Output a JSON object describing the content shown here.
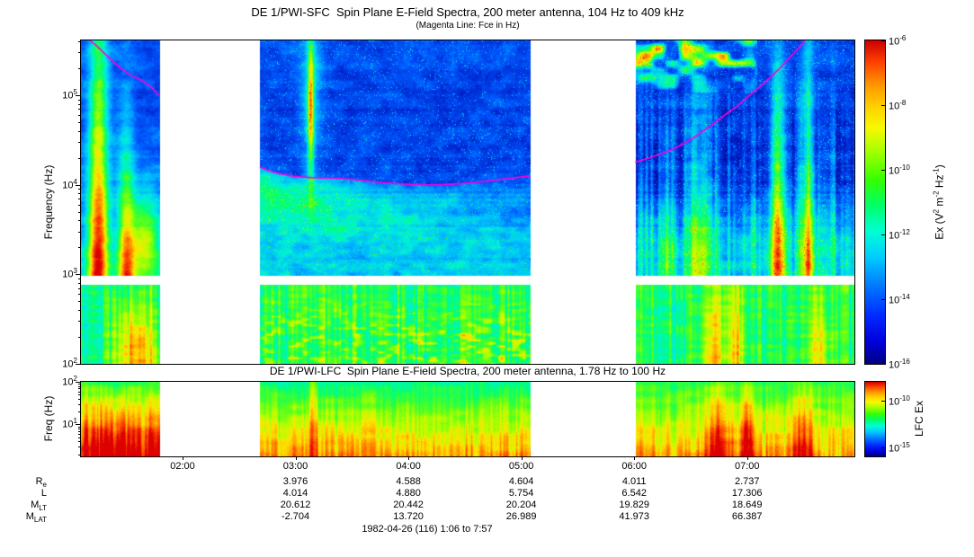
{
  "footer": "1982-04-26 (116) 1:06 to 7:57",
  "time_axis": {
    "start": "1:06",
    "end": "7:57",
    "ticks": [
      "02:00",
      "03:00",
      "04:00",
      "05:00",
      "06:00",
      "07:00"
    ]
  },
  "ephemeris": {
    "col_ticks": [
      "03:00",
      "04:00",
      "05:00",
      "06:00",
      "07:00"
    ],
    "rows": [
      {
        "label": {
          "base": "R",
          "sub": "e"
        },
        "values": [
          "3.976",
          "4.588",
          "4.604",
          "4.011",
          "2.737"
        ]
      },
      {
        "label": {
          "base": "L",
          "sub": ""
        },
        "values": [
          "4.014",
          "4.880",
          "5.754",
          "6.542",
          "17.306"
        ]
      },
      {
        "label": {
          "base": "M",
          "sub": "LT"
        },
        "values": [
          "20.612",
          "20.442",
          "20.204",
          "19.829",
          "18.649"
        ]
      },
      {
        "label": {
          "base": "M",
          "sub": "LAT"
        },
        "values": [
          "-2.704",
          "13.720",
          "26.989",
          "41.973",
          "66.387"
        ]
      }
    ]
  },
  "chart_data": [
    {
      "type": "heatmap",
      "instrument": "DE 1/PWI-SFC",
      "title": "DE 1/PWI-SFC  Spin Plane E-Field Spectra, 200 meter antenna, 104 Hz to 409 kHz",
      "subtitle": "(Magenta Line: Fce in Hz)",
      "ylabel": "Frequency (Hz)",
      "yscale": "log",
      "ylim": [
        100,
        409000
      ],
      "yticks": [
        {
          "value": 100000,
          "base": "10",
          "exp": "5"
        },
        {
          "value": 10000,
          "base": "10",
          "exp": "4"
        },
        {
          "value": 1000,
          "base": "10",
          "exp": "3"
        },
        {
          "value": 100,
          "base": "10",
          "exp": "2"
        }
      ],
      "xticks": [
        "02:00",
        "03:00",
        "04:00",
        "05:00",
        "06:00",
        "07:00"
      ],
      "colorbar": {
        "range": [
          1e-16,
          1e-06
        ],
        "ticks": [
          {
            "base": "10",
            "exp": "-6"
          },
          {
            "base": "10",
            "exp": "-8"
          },
          {
            "base": "10",
            "exp": "-10"
          },
          {
            "base": "10",
            "exp": "-12"
          },
          {
            "base": "10",
            "exp": "-14"
          },
          {
            "base": "10",
            "exp": "-16"
          }
        ],
        "tick_exponents": [
          -6,
          -8,
          -10,
          -12,
          -14,
          -16
        ],
        "label_parts": {
          "t1": "Ex (V",
          "s1": "2",
          "t2": " m",
          "s2": "-2",
          "t3": " Hz",
          "s3": "-1",
          "t4": ")"
        }
      },
      "data_gaps": [
        {
          "start": "01:48",
          "end": "02:41"
        },
        {
          "start": "05:05",
          "end": "06:01"
        }
      ],
      "gap_fractions": [
        [
          0.1023,
          0.2314
        ],
        [
          0.582,
          0.7174
        ]
      ],
      "receiver_gap_near_hz": 1000,
      "fce_line": {
        "color": "#ff00d8",
        "points": [
          [
            0.0,
            5.67
          ],
          [
            0.055,
            5.28
          ],
          [
            0.099,
            5.01
          ],
          [
            0.2314,
            4.2
          ],
          [
            0.35,
            4.06
          ],
          [
            0.46,
            4.0
          ],
          [
            0.582,
            4.1
          ],
          [
            0.7174,
            4.25
          ],
          [
            0.78,
            4.46
          ],
          [
            0.85,
            4.88
          ],
          [
            0.9,
            5.26
          ],
          [
            0.945,
            5.69
          ],
          [
            1.0,
            6.21
          ]
        ]
      },
      "features": [
        "intense broadband burst 01:10-01:45 reaching 400 kHz",
        "narrowband spike near 03:05 around 30-100 kHz",
        "hiss band just below Fce line 02:45-04:30",
        "broadband auroral emissions 06:00-07:50",
        "dense cyan-green hiss below ~1 kHz in all data segments",
        "bright yellow-orange patches below 1 kHz near 01:30 and 07:10-07:40"
      ]
    },
    {
      "type": "heatmap",
      "instrument": "DE 1/PWI-LFC",
      "title": "DE 1/PWI-LFC  Spin Plane E-Field Spectra, 200 meter antenna, 1.78 Hz to 100 Hz",
      "ylabel": "Freq (Hz)",
      "yscale": "log",
      "ylim": [
        1.78,
        100
      ],
      "yticks": [
        {
          "value": 100,
          "base": "10",
          "exp": "2"
        },
        {
          "value": 10,
          "base": "10",
          "exp": "1"
        }
      ],
      "colorbar": {
        "range": [
          1e-16,
          1e-08
        ],
        "label": "LFC Ex",
        "ticks": [
          {
            "base": "10",
            "exp": "-10"
          },
          {
            "base": "10",
            "exp": "-15"
          }
        ],
        "tick_exponents": [
          -10,
          -15
        ]
      },
      "features": [
        "red-orange intense low-frequency noise 01:06-01:48",
        "green background with yellow lower edge 02:41-05:05",
        "narrow vertical enhancement near 03:05",
        "strong red vertical bursts near 06:50, 07:00 and 07:30"
      ]
    }
  ]
}
